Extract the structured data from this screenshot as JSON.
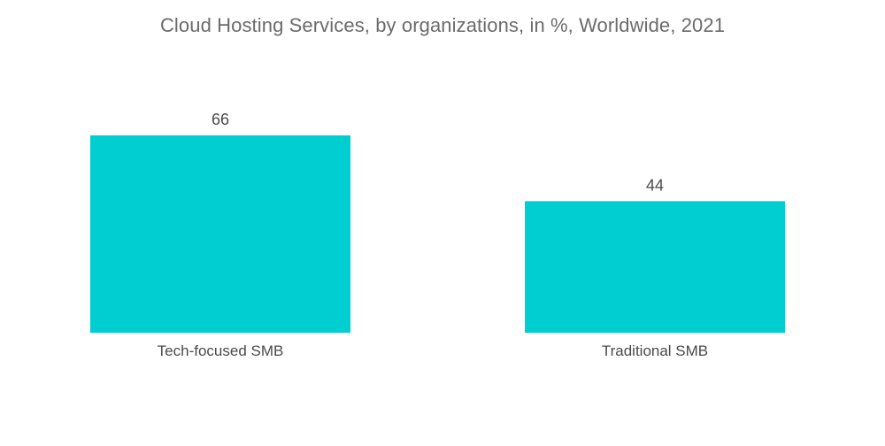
{
  "chart_data": {
    "type": "bar",
    "title": "Cloud Hosting Services, by organizations, in %, Worldwide, 2021",
    "categories": [
      "Tech-focused SMB",
      "Traditional SMB"
    ],
    "values": [
      66,
      44
    ],
    "xlabel": "",
    "ylabel": "",
    "ylim": [
      0,
      100
    ],
    "grid": false,
    "legend": "none",
    "colors": {
      "bar": "#00CED1"
    }
  }
}
